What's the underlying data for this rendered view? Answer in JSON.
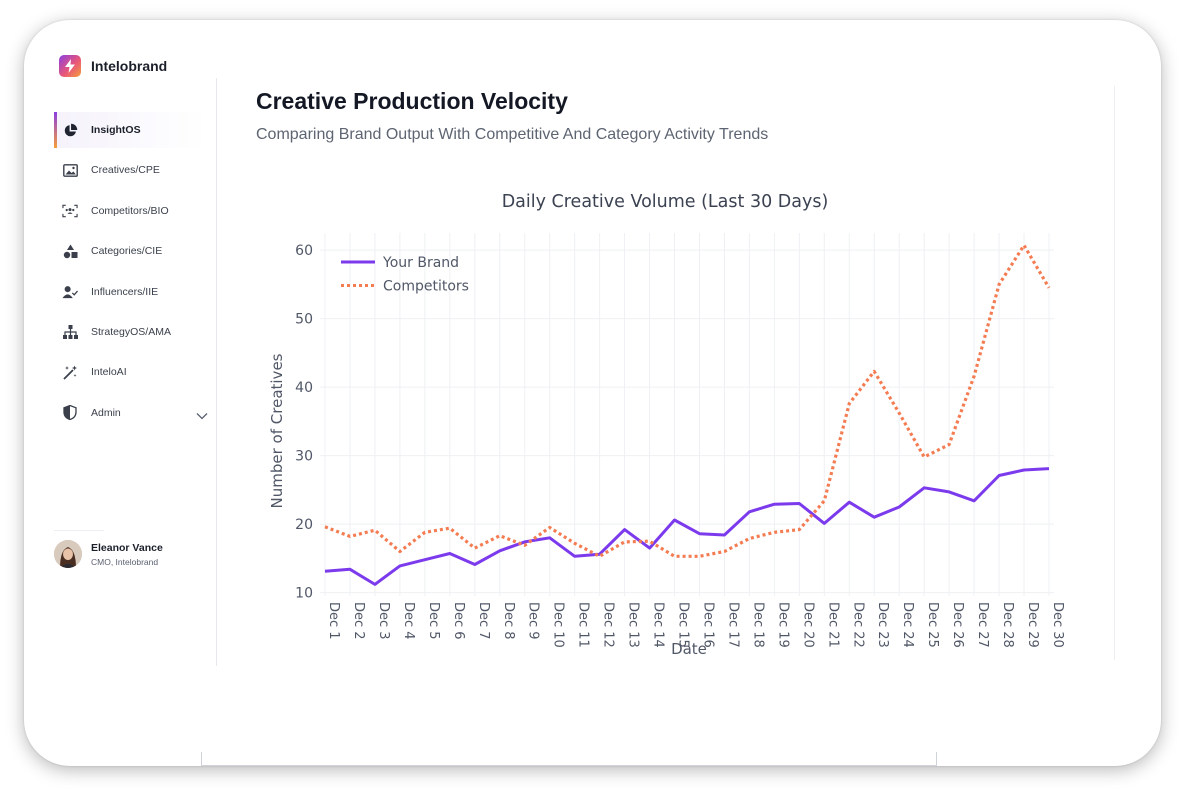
{
  "app": {
    "brand_name": "Intelobrand"
  },
  "sidebar": {
    "items": [
      {
        "label": "InsightOS",
        "icon": "pie-chart-icon",
        "active": true
      },
      {
        "label": "Creatives/CPE",
        "icon": "image-icon"
      },
      {
        "label": "Competitors/BIO",
        "icon": "users-scan-icon"
      },
      {
        "label": "Categories/CIE",
        "icon": "shapes-icon"
      },
      {
        "label": "Influencers/IIE",
        "icon": "user-check-icon"
      },
      {
        "label": "StrategyOS/AMA",
        "icon": "hierarchy-icon"
      },
      {
        "label": "InteloAI",
        "icon": "magic-wand-icon"
      },
      {
        "label": "Admin",
        "icon": "shield-icon"
      }
    ]
  },
  "user": {
    "name": "Eleanor Vance",
    "role": "CMO, Intelobrand"
  },
  "page": {
    "title": "Creative Production Velocity",
    "subtitle": "Comparing Brand Output With Competitive And Category Activity Trends"
  },
  "colors": {
    "brand": "#7c3aed",
    "competitors": "#f47c52",
    "grid": "#eef0f3",
    "axis_text": "#505767"
  },
  "chart_data": {
    "type": "line",
    "title": "Daily Creative Volume (Last 30 Days)",
    "xlabel": "Date",
    "ylabel": "Number of Creatives",
    "ylim": [
      9.5,
      62.5
    ],
    "yticks": [
      10,
      20,
      30,
      40,
      50,
      60
    ],
    "legend_position": "top-left",
    "categories": [
      "Dec 1",
      "Dec 2",
      "Dec 3",
      "Dec 4",
      "Dec 5",
      "Dec 6",
      "Dec 7",
      "Dec 8",
      "Dec 9",
      "Dec 10",
      "Dec 11",
      "Dec 12",
      "Dec 13",
      "Dec 14",
      "Dec 15",
      "Dec 16",
      "Dec 17",
      "Dec 18",
      "Dec 19",
      "Dec 20",
      "Dec 21",
      "Dec 22",
      "Dec 23",
      "Dec 24",
      "Dec 25",
      "Dec 26",
      "Dec 27",
      "Dec 28",
      "Dec 29",
      "Dec 30"
    ],
    "series": [
      {
        "name": "Your Brand",
        "style": "solid",
        "color": "#7c3aed",
        "values": [
          13.1,
          13.4,
          11.2,
          13.9,
          14.8,
          15.7,
          14.1,
          16.1,
          17.4,
          18.0,
          15.3,
          15.6,
          19.2,
          16.5,
          20.6,
          18.6,
          18.4,
          21.8,
          22.9,
          23.0,
          20.1,
          23.2,
          21.0,
          22.5,
          25.3,
          24.7,
          23.4,
          27.1,
          27.9,
          28.1
        ]
      },
      {
        "name": "Competitors",
        "style": "dotted",
        "color": "#f47c52",
        "values": [
          19.6,
          18.2,
          19.1,
          16.0,
          18.8,
          19.4,
          16.5,
          18.3,
          16.9,
          19.5,
          17.2,
          15.3,
          17.4,
          17.5,
          15.3,
          15.3,
          16.0,
          17.9,
          18.8,
          19.2,
          23.4,
          37.6,
          42.3,
          36.2,
          29.8,
          31.6,
          41.6,
          55.0,
          60.7,
          54.5
        ]
      }
    ]
  }
}
